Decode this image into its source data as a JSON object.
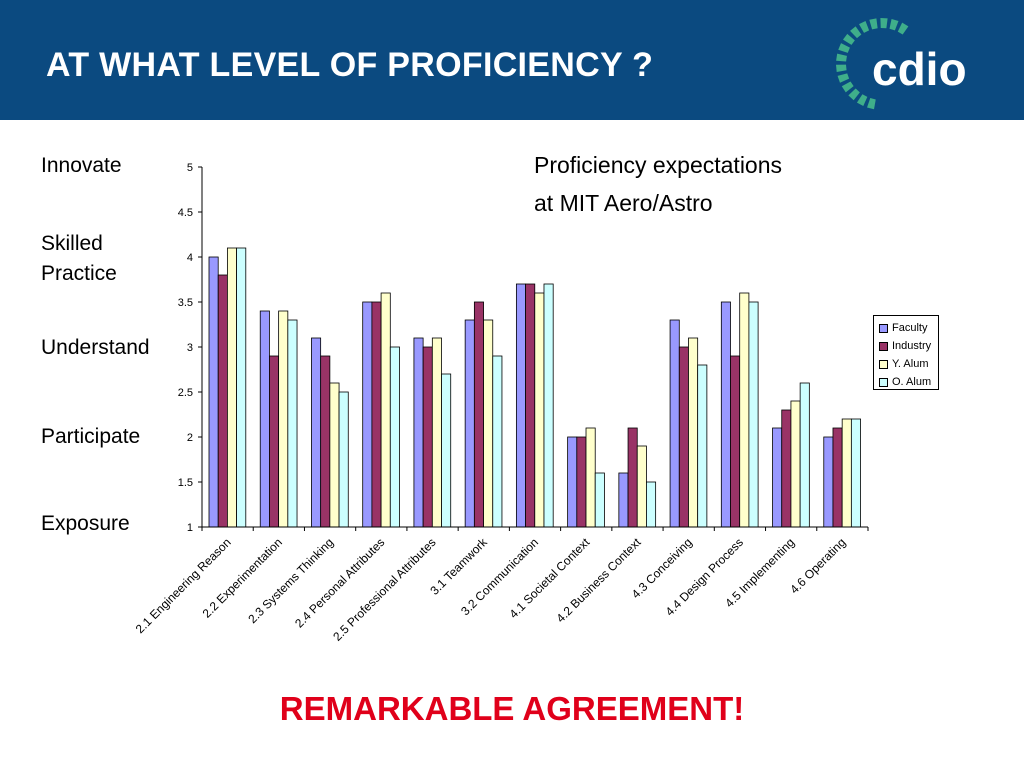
{
  "header": {
    "title": "AT WHAT LEVEL OF PROFICIENCY ?",
    "logo_text": "cdio"
  },
  "scale_labels": [
    "Innovate",
    "Skilled Practice",
    "Understand",
    "Participate",
    "Exposure"
  ],
  "footer": {
    "text": "REMARKABLE AGREEMENT!"
  },
  "colors": {
    "header_bg": "#0b4a80",
    "logo_green": "#3fae8a",
    "faculty": "#9999ff",
    "industry": "#993366",
    "y_alum": "#ffffcc",
    "o_alum": "#ccffff",
    "footer": "#e0001a"
  },
  "chart_data": {
    "type": "bar",
    "title": [
      "Proficiency expectations",
      "at MIT Aero/Astro"
    ],
    "categories": [
      "2.1 Engineering Reason",
      "2.2 Experimentation",
      "2.3 Systems Thinking",
      "2.4 Personal Attributes",
      "2.5 Professional Attributes",
      "3.1 Teamwork",
      "3.2 Communication",
      "4.1 Societal Context",
      "4.2 Business Context",
      "4.3 Conceiving",
      "4.4 Design Process",
      "4.5 Implementing",
      "4.6 Operating"
    ],
    "series": [
      {
        "name": "Faculty",
        "values": [
          4.0,
          3.4,
          3.1,
          3.5,
          3.1,
          3.3,
          3.7,
          2.0,
          1.6,
          3.3,
          3.5,
          2.1,
          2.0
        ]
      },
      {
        "name": "Industry",
        "values": [
          3.8,
          2.9,
          2.9,
          3.5,
          3.0,
          3.5,
          3.7,
          2.0,
          2.1,
          3.0,
          2.9,
          2.3,
          2.1
        ]
      },
      {
        "name": "Y. Alum",
        "values": [
          4.1,
          3.4,
          2.6,
          3.6,
          3.1,
          3.3,
          3.6,
          2.1,
          1.9,
          3.1,
          3.6,
          2.4,
          2.2
        ]
      },
      {
        "name": "O. Alum",
        "values": [
          4.1,
          3.3,
          2.5,
          3.0,
          2.7,
          2.9,
          3.7,
          1.6,
          1.5,
          2.8,
          3.5,
          2.6,
          2.2
        ]
      }
    ],
    "yticks": [
      "1",
      "1.5",
      "2",
      "2.5",
      "3",
      "3.5",
      "4",
      "4.5",
      "5"
    ],
    "ylim": [
      1,
      5
    ],
    "grid": false,
    "legend_position": "right"
  }
}
